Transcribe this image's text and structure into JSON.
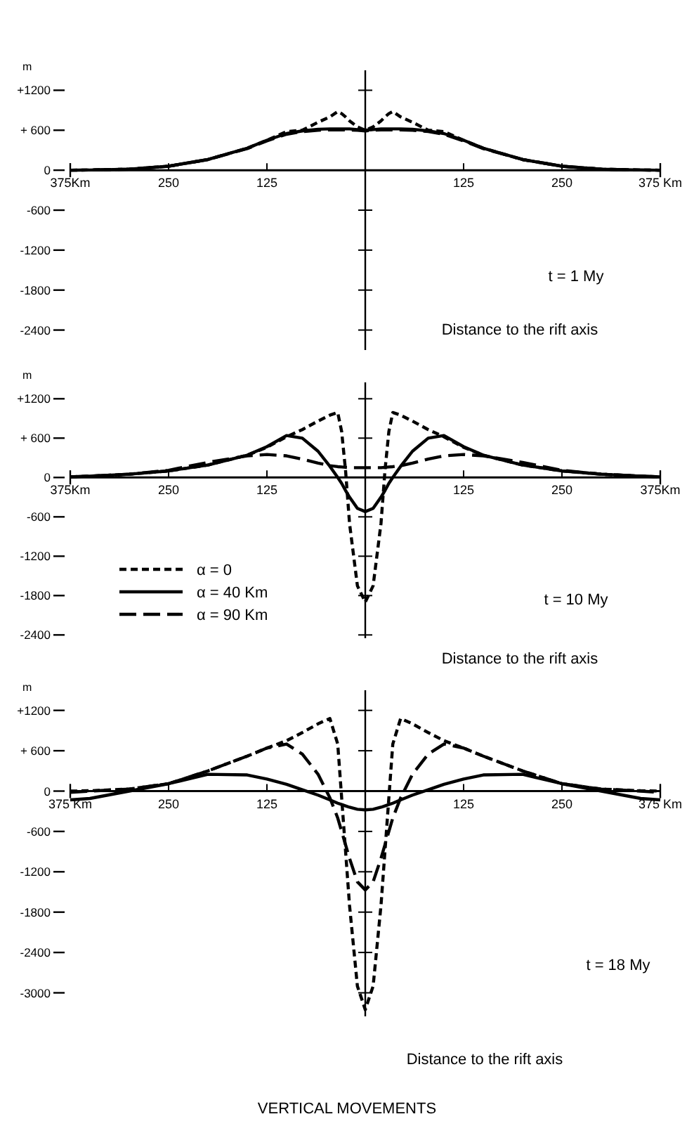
{
  "chart_data": [
    {
      "type": "line",
      "ylabel": "m",
      "xlabel": "Distance to the rift axis",
      "annotations": [
        "t = 1 My"
      ],
      "x": [
        -375,
        -350,
        -300,
        -250,
        -200,
        -150,
        -125,
        -100,
        -80,
        -60,
        -45,
        -35,
        -30,
        -25,
        -20,
        -10,
        0,
        10,
        20,
        25,
        30,
        35,
        45,
        60,
        80,
        100,
        125,
        150,
        200,
        250,
        300,
        350,
        375
      ],
      "xlim": [
        -375,
        375
      ],
      "xticks": [
        {
          "value": -375,
          "label": "375Km"
        },
        {
          "value": -250,
          "label": "250"
        },
        {
          "value": -125,
          "label": "125"
        },
        {
          "value": 125,
          "label": "125"
        },
        {
          "value": 250,
          "label": "250"
        },
        {
          "value": 375,
          "label": "375 Km"
        }
      ],
      "ylim": [
        -2700,
        1500
      ],
      "yticks": [
        {
          "value": 1200,
          "label": "+1200"
        },
        {
          "value": 600,
          "label": "+ 600"
        },
        {
          "value": 0,
          "label": "0"
        },
        {
          "value": -600,
          "label": "-600"
        },
        {
          "value": -1200,
          "label": "-1200"
        },
        {
          "value": -1800,
          "label": "-1800"
        },
        {
          "value": -2400,
          "label": "-2400"
        }
      ],
      "legend": false,
      "series": [
        {
          "color": "#000000",
          "line_style": "dashed",
          "values": [
            0,
            3,
            15,
            60,
            160,
            330,
            450,
            580,
            600,
            720,
            800,
            880,
            850,
            800,
            740,
            650,
            600,
            650,
            740,
            800,
            850,
            880,
            800,
            720,
            600,
            580,
            450,
            330,
            160,
            60,
            15,
            3,
            0
          ]
        },
        {
          "color": "#000000",
          "line_style": "solid",
          "values": [
            0,
            3,
            15,
            60,
            160,
            330,
            450,
            550,
            590,
            615,
            620,
            620,
            620,
            620,
            620,
            610,
            600,
            610,
            620,
            620,
            620,
            620,
            620,
            615,
            590,
            550,
            450,
            330,
            160,
            60,
            15,
            3,
            0
          ]
        },
        {
          "color": "#000000",
          "line_style": "dashed",
          "values": [
            0,
            3,
            15,
            60,
            160,
            325,
            440,
            540,
            580,
            600,
            605,
            605,
            605,
            605,
            605,
            600,
            590,
            600,
            605,
            605,
            605,
            605,
            605,
            600,
            580,
            540,
            440,
            325,
            160,
            60,
            15,
            3,
            0
          ]
        }
      ]
    },
    {
      "type": "line",
      "ylabel": "m",
      "xlabel": "Distance to the rift axis",
      "annotations": [
        "t = 10 My"
      ],
      "x": [
        -375,
        -350,
        -300,
        -250,
        -200,
        -150,
        -125,
        -100,
        -80,
        -60,
        -45,
        -35,
        -30,
        -25,
        -20,
        -10,
        0,
        10,
        20,
        25,
        30,
        35,
        45,
        60,
        80,
        100,
        125,
        150,
        200,
        250,
        300,
        350,
        375
      ],
      "xlim": [
        -375,
        375
      ],
      "xticks": [
        {
          "value": -375,
          "label": "375Km"
        },
        {
          "value": -250,
          "label": "250"
        },
        {
          "value": -125,
          "label": "125"
        },
        {
          "value": 125,
          "label": "125"
        },
        {
          "value": 250,
          "label": "250"
        },
        {
          "value": 375,
          "label": "375Km"
        }
      ],
      "ylim": [
        -2450,
        1450
      ],
      "yticks": [
        {
          "value": 1200,
          "label": "+1200"
        },
        {
          "value": 600,
          "label": "+ 600"
        },
        {
          "value": 0,
          "label": "0"
        },
        {
          "value": -600,
          "label": "-600"
        },
        {
          "value": -1200,
          "label": "-1200"
        },
        {
          "value": -1800,
          "label": "-1800"
        },
        {
          "value": -2400,
          "label": "-2400"
        }
      ],
      "legend": "bottom left",
      "series": [
        {
          "name": "α = 0",
          "color": "#000000",
          "line_style": "dashed",
          "values": [
            10,
            20,
            50,
            100,
            190,
            340,
            460,
            620,
            730,
            860,
            950,
            990,
            700,
            100,
            -700,
            -1650,
            -1900,
            -1650,
            -700,
            100,
            700,
            990,
            950,
            860,
            730,
            620,
            460,
            340,
            190,
            100,
            50,
            20,
            10
          ]
        },
        {
          "name": "α = 40 Km",
          "color": "#000000",
          "line_style": "solid",
          "values": [
            10,
            20,
            50,
            100,
            190,
            340,
            470,
            640,
            600,
            400,
            170,
            0,
            -90,
            -200,
            -300,
            -470,
            -520,
            -470,
            -300,
            -200,
            -90,
            0,
            170,
            400,
            600,
            640,
            470,
            340,
            190,
            100,
            50,
            20,
            10
          ]
        },
        {
          "name": "α = 90 Km",
          "color": "#000000",
          "line_style": "dashed",
          "values": [
            10,
            20,
            50,
            110,
            230,
            330,
            350,
            330,
            280,
            220,
            180,
            165,
            160,
            155,
            150,
            150,
            150,
            150,
            150,
            155,
            160,
            165,
            180,
            220,
            280,
            330,
            350,
            330,
            230,
            110,
            50,
            20,
            10
          ]
        }
      ]
    },
    {
      "type": "line",
      "ylabel": "m",
      "xlabel": "Distance to the rift axis",
      "annotations": [
        "t = 18 My",
        "VERTICAL MOVEMENTS"
      ],
      "x": [
        -375,
        -350,
        -300,
        -250,
        -200,
        -150,
        -125,
        -100,
        -80,
        -60,
        -45,
        -35,
        -30,
        -25,
        -20,
        -10,
        0,
        10,
        20,
        25,
        30,
        35,
        45,
        60,
        80,
        100,
        125,
        150,
        200,
        250,
        300,
        350,
        375
      ],
      "xlim": [
        -375,
        375
      ],
      "xticks": [
        {
          "value": -375,
          "label": "375 Km"
        },
        {
          "value": -250,
          "label": "250"
        },
        {
          "value": -125,
          "label": "125"
        },
        {
          "value": 125,
          "label": "125"
        },
        {
          "value": 250,
          "label": "250"
        },
        {
          "value": 375,
          "label": "375 Km"
        }
      ],
      "ylim": [
        -3350,
        1500
      ],
      "yticks": [
        {
          "value": 1200,
          "label": "+1200"
        },
        {
          "value": 600,
          "label": "+ 600"
        },
        {
          "value": 0,
          "label": "0"
        },
        {
          "value": -600,
          "label": "-600"
        },
        {
          "value": -1200,
          "label": "-1200"
        },
        {
          "value": -1800,
          "label": "-1800"
        },
        {
          "value": -2400,
          "label": "-2400"
        },
        {
          "value": -3000,
          "label": "-3000"
        }
      ],
      "legend": false,
      "series": [
        {
          "color": "#000000",
          "line_style": "dashed",
          "values": [
            0,
            5,
            30,
            110,
            300,
            520,
            640,
            750,
            870,
            1000,
            1080,
            700,
            -100,
            -900,
            -1700,
            -2900,
            -3250,
            -2900,
            -1700,
            -900,
            -100,
            700,
            1080,
            1000,
            870,
            750,
            640,
            520,
            300,
            110,
            30,
            5,
            0
          ]
        },
        {
          "color": "#000000",
          "line_style": "solid",
          "values": [
            -130,
            -110,
            0,
            110,
            250,
            240,
            180,
            100,
            20,
            -60,
            -130,
            -180,
            -200,
            -220,
            -240,
            -270,
            -280,
            -270,
            -240,
            -220,
            -200,
            -180,
            -130,
            -60,
            20,
            100,
            180,
            240,
            250,
            110,
            0,
            -110,
            -130
          ]
        },
        {
          "color": "#000000",
          "line_style": "dashed",
          "values": [
            -20,
            0,
            30,
            110,
            300,
            520,
            640,
            700,
            550,
            250,
            -100,
            -400,
            -600,
            -800,
            -1000,
            -1350,
            -1470,
            -1350,
            -1000,
            -800,
            -600,
            -400,
            -100,
            250,
            550,
            700,
            640,
            520,
            300,
            110,
            30,
            0,
            -20
          ]
        }
      ]
    }
  ]
}
